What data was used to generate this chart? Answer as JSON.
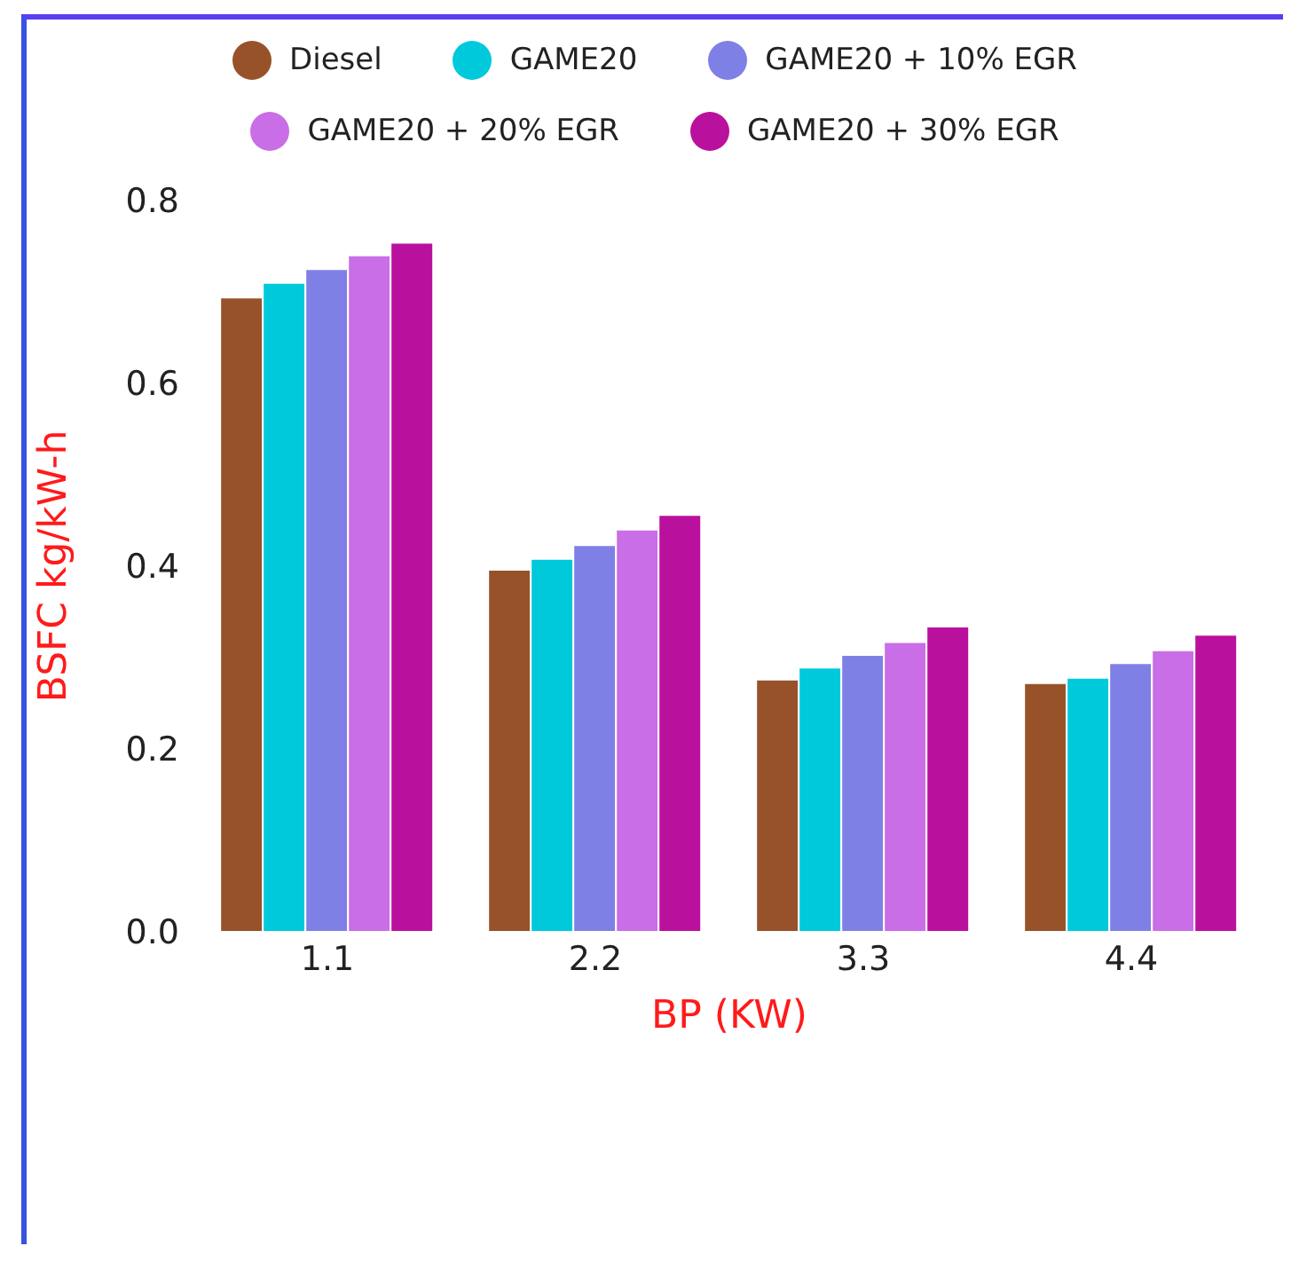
{
  "chart_data": {
    "type": "bar",
    "xlabel": "BP (KW)",
    "ylabel": "BSFC kg/kW-h",
    "categories": [
      "1.1",
      "2.2",
      "3.3",
      "4.4"
    ],
    "series": [
      {
        "name": "Diesel",
        "color": "#97522a",
        "values": [
          0.694,
          0.396,
          0.276,
          0.272
        ]
      },
      {
        "name": "GAME20",
        "color": "#00c9db",
        "values": [
          0.71,
          0.408,
          0.289,
          0.278
        ]
      },
      {
        "name": "GAME20 + 10% EGR",
        "color": "#7f80e6",
        "values": [
          0.725,
          0.423,
          0.303,
          0.294
        ]
      },
      {
        "name": "GAME20 + 20% EGR",
        "color": "#c96ee6",
        "values": [
          0.74,
          0.44,
          0.317,
          0.308
        ]
      },
      {
        "name": "GAME20 + 30% EGR",
        "color": "#b9119d",
        "values": [
          0.754,
          0.456,
          0.334,
          0.325
        ]
      }
    ],
    "ylim": [
      0,
      0.8
    ],
    "yticks": [
      {
        "value": 0,
        "label": "0.0"
      },
      0.2,
      0.4,
      0.6,
      0.8
    ],
    "grid": false,
    "legend": "top"
  }
}
